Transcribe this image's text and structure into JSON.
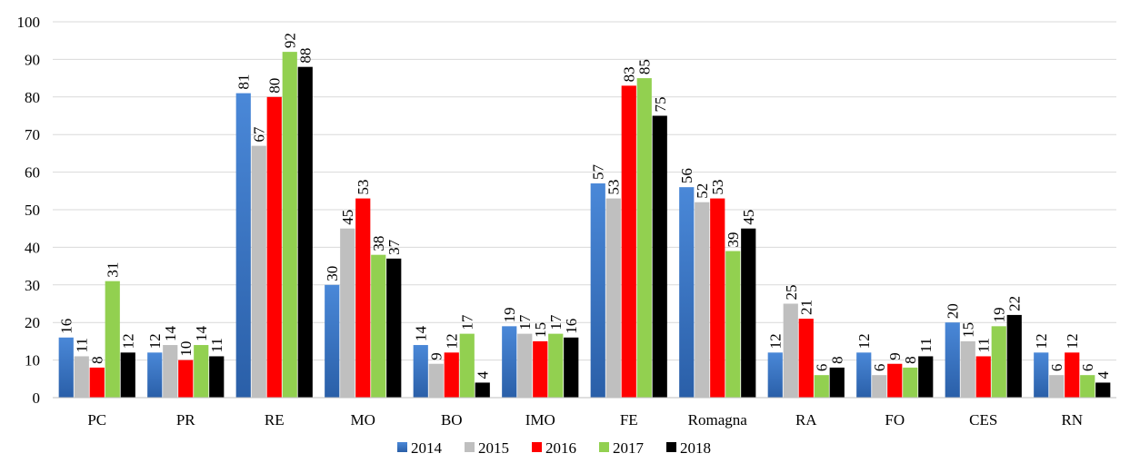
{
  "chart_data": {
    "type": "bar",
    "title": "",
    "xlabel": "",
    "ylabel": "",
    "ylim": [
      0,
      100
    ],
    "yticks": [
      0,
      10,
      20,
      30,
      40,
      50,
      60,
      70,
      80,
      90,
      100
    ],
    "grid": true,
    "legend_position": "bottom",
    "categories": [
      "PC",
      "PR",
      "RE",
      "MO",
      "BO",
      "IMO",
      "FE",
      "Romagna",
      "RA",
      "FO",
      "CES",
      "RN"
    ],
    "series": [
      {
        "name": "2014",
        "color": "#3a78c9",
        "values": [
          16,
          12,
          81,
          30,
          14,
          19,
          57,
          56,
          12,
          12,
          20,
          12
        ]
      },
      {
        "name": "2015",
        "color": "#bfbfbf",
        "values": [
          11,
          14,
          67,
          45,
          9,
          17,
          53,
          52,
          25,
          6,
          15,
          6
        ]
      },
      {
        "name": "2016",
        "color": "#ff0000",
        "values": [
          8,
          10,
          80,
          53,
          12,
          15,
          83,
          53,
          21,
          9,
          11,
          12
        ]
      },
      {
        "name": "2017",
        "color": "#92d050",
        "values": [
          31,
          14,
          92,
          38,
          17,
          17,
          85,
          39,
          6,
          8,
          19,
          6
        ]
      },
      {
        "name": "2018",
        "color": "#000000",
        "values": [
          12,
          11,
          88,
          37,
          4,
          16,
          75,
          45,
          8,
          11,
          22,
          4
        ]
      }
    ]
  }
}
